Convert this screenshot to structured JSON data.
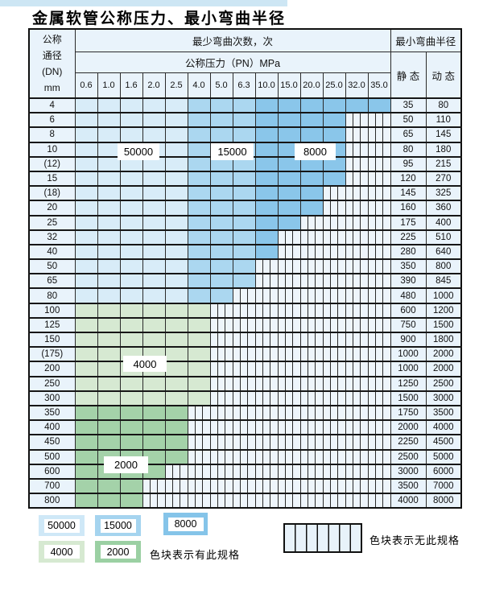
{
  "page": {
    "title": "金属软管公称压力、最小弯曲半径",
    "colors": {
      "top_strip": "#cde6f4",
      "header_bg": "#e9f3fb",
      "hatch_bg": "#eef5fb",
      "border": "#1f1f1f",
      "cycles_50000": "#d8ecf8",
      "cycles_15000": "#abd7f0",
      "cycles_8000": "#8ac6ea",
      "cycles_4000": "#d6e9d2",
      "cycles_2000": "#a4d2a9"
    }
  },
  "table": {
    "header": {
      "dn_lines": [
        "公称",
        "通径",
        "(DN)",
        "mm"
      ],
      "bend_cycles_label": "最少弯曲次数，次",
      "pressure_label": "公称压力（PN）MPa",
      "min_radius_label": "最小弯曲半径",
      "static_label": "静 态",
      "dynamic_label": "动 态",
      "pressures": [
        "0.6",
        "1.0",
        "1.6",
        "2.0",
        "2.5",
        "4.0",
        "5.0",
        "6.3",
        "10.0",
        "15.0",
        "20.0",
        "25.0",
        "32.0",
        "35.0"
      ]
    },
    "overlay_labels": [
      {
        "label": "50000"
      },
      {
        "label": "15000"
      },
      {
        "label": "8000"
      },
      {
        "label": "4000"
      },
      {
        "label": "2000"
      }
    ]
  },
  "legend": {
    "swatches": [
      {
        "label": "50000",
        "color": "#cfe8f7"
      },
      {
        "label": "15000",
        "color": "#a5d4ef"
      },
      {
        "label": "8000",
        "color": "#85c4e9"
      },
      {
        "label": "4000",
        "color": "#d6e9d1"
      },
      {
        "label": "2000",
        "color": "#9bd0a3"
      }
    ],
    "has_spec_text": "色块表示有此规格",
    "no_spec_text": "色块表示无此规格"
  },
  "chart_data": {
    "type": "table",
    "title": "金属软管公称压力、最小弯曲半径",
    "pressure_columns_MPa": [
      "0.6",
      "1.0",
      "1.6",
      "2.0",
      "2.5",
      "4.0",
      "5.0",
      "6.3",
      "10.0",
      "15.0",
      "20.0",
      "25.0",
      "32.0",
      "35.0"
    ],
    "radius_columns": [
      "静态",
      "动态"
    ],
    "bend_cycle_bands": {
      "50000": "PN 0.6–2.5 (蓝色浅)",
      "15000": "PN 4.0–6.3 (蓝色中)",
      "8000": "PN 10.0–35.0 (蓝色深)",
      "4000": "DN 100–300 (绿色浅)",
      "2000": "DN 350–800 (绿色深)"
    },
    "rows": [
      {
        "dn": "4",
        "spec_max_pn": "35.0",
        "static": "35",
        "dynamic": "80"
      },
      {
        "dn": "6",
        "spec_max_pn": "25.0",
        "static": "50",
        "dynamic": "110"
      },
      {
        "dn": "8",
        "spec_max_pn": "25.0",
        "static": "65",
        "dynamic": "145"
      },
      {
        "dn": "10",
        "spec_max_pn": "25.0",
        "static": "80",
        "dynamic": "180"
      },
      {
        "dn": "(12)",
        "spec_max_pn": "25.0",
        "static": "95",
        "dynamic": "215"
      },
      {
        "dn": "15",
        "spec_max_pn": "25.0",
        "static": "120",
        "dynamic": "270"
      },
      {
        "dn": "(18)",
        "spec_max_pn": "20.0",
        "static": "145",
        "dynamic": "325"
      },
      {
        "dn": "20",
        "spec_max_pn": "20.0",
        "static": "160",
        "dynamic": "360"
      },
      {
        "dn": "25",
        "spec_max_pn": "15.0",
        "static": "175",
        "dynamic": "400"
      },
      {
        "dn": "32",
        "spec_max_pn": "10.0",
        "static": "225",
        "dynamic": "510"
      },
      {
        "dn": "40",
        "spec_max_pn": "10.0",
        "static": "280",
        "dynamic": "640"
      },
      {
        "dn": "50",
        "spec_max_pn": "6.3",
        "static": "350",
        "dynamic": "800"
      },
      {
        "dn": "65",
        "spec_max_pn": "6.3",
        "static": "390",
        "dynamic": "845"
      },
      {
        "dn": "80",
        "spec_max_pn": "5.0",
        "static": "480",
        "dynamic": "1000"
      },
      {
        "dn": "100",
        "spec_max_pn": "4.0",
        "static": "600",
        "dynamic": "1200"
      },
      {
        "dn": "125",
        "spec_max_pn": "4.0",
        "static": "750",
        "dynamic": "1500"
      },
      {
        "dn": "150",
        "spec_max_pn": "4.0",
        "static": "900",
        "dynamic": "1800"
      },
      {
        "dn": "(175)",
        "spec_max_pn": "4.0",
        "static": "1000",
        "dynamic": "2000"
      },
      {
        "dn": "200",
        "spec_max_pn": "4.0",
        "static": "1000",
        "dynamic": "2000"
      },
      {
        "dn": "250",
        "spec_max_pn": "4.0",
        "static": "1250",
        "dynamic": "2500"
      },
      {
        "dn": "300",
        "spec_max_pn": "4.0",
        "static": "1500",
        "dynamic": "3000"
      },
      {
        "dn": "350",
        "spec_max_pn": "2.5",
        "static": "1750",
        "dynamic": "3500"
      },
      {
        "dn": "400",
        "spec_max_pn": "2.5",
        "static": "2000",
        "dynamic": "4000"
      },
      {
        "dn": "450",
        "spec_max_pn": "2.5",
        "static": "2250",
        "dynamic": "4500"
      },
      {
        "dn": "500",
        "spec_max_pn": "2.5",
        "static": "2500",
        "dynamic": "5000"
      },
      {
        "dn": "600",
        "spec_max_pn": "2.0",
        "static": "3000",
        "dynamic": "6000"
      },
      {
        "dn": "700",
        "spec_max_pn": "1.6",
        "static": "3500",
        "dynamic": "7000"
      },
      {
        "dn": "800",
        "spec_max_pn": "1.6",
        "static": "4000",
        "dynamic": "8000"
      }
    ]
  }
}
